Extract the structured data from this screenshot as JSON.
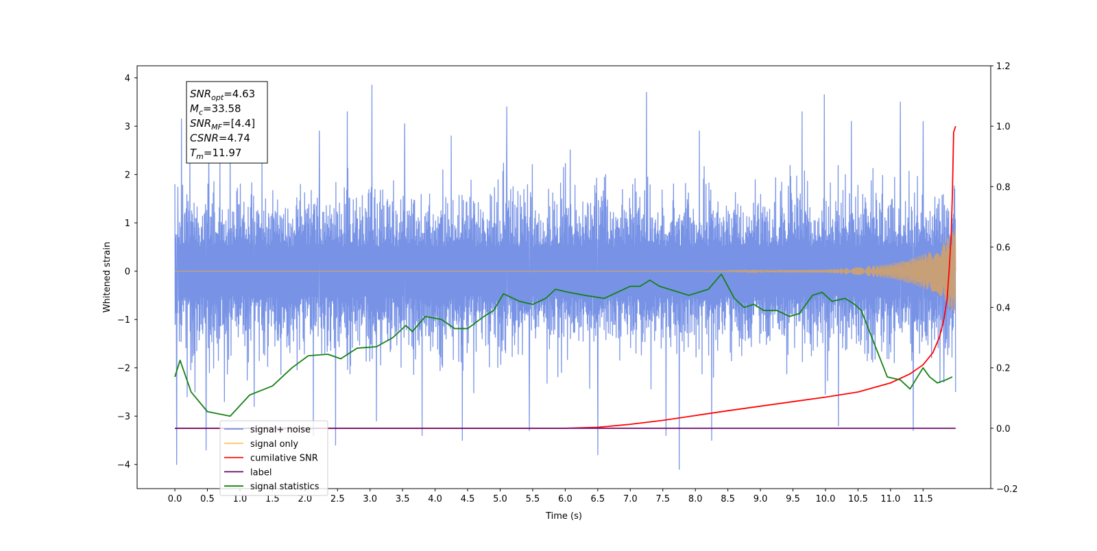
{
  "chart_data": {
    "type": "line",
    "xlabel": "Time (s)",
    "ylabel": "Whitened strain",
    "xlim": [
      -0.58,
      12.54
    ],
    "ylim": [
      -4.5,
      4.25
    ],
    "y2lim": [
      -0.2,
      1.2
    ],
    "x_ticks": [
      0.0,
      0.5,
      1.0,
      1.5,
      2.0,
      2.5,
      3.0,
      3.5,
      4.0,
      4.5,
      5.0,
      5.5,
      6.0,
      6.5,
      7.0,
      7.5,
      8.0,
      8.5,
      9.0,
      9.5,
      10.0,
      10.5,
      11.0,
      11.5
    ],
    "x_tick_labels": [
      "0.0",
      "0.5",
      "1.0",
      "1.5",
      "2.0",
      "2.5",
      "3.0",
      "3.5",
      "4.0",
      "4.5",
      "5.0",
      "5.5",
      "6.0",
      "6.5",
      "7.0",
      "7.5",
      "8.0",
      "8.5",
      "9.0",
      "9.5",
      "10.0",
      "10.5",
      "11.0",
      "11.5"
    ],
    "y_ticks": [
      -4,
      -3,
      -2,
      -1,
      0,
      1,
      2,
      3,
      4
    ],
    "y_tick_labels": [
      "−4",
      "−3",
      "−2",
      "−1",
      "0",
      "1",
      "2",
      "3",
      "4"
    ],
    "y2_ticks": [
      -0.2,
      0.0,
      0.2,
      0.4,
      0.6,
      0.8,
      1.0,
      1.2
    ],
    "y2_tick_labels": [
      "−0.2",
      "0.0",
      "0.2",
      "0.4",
      "0.6",
      "0.8",
      "1.0",
      "1.2"
    ],
    "grid": false,
    "legend_position": "lower-left",
    "noise_band": {
      "x_range": [
        0.0,
        12.0
      ],
      "typical_upper": 1.6,
      "typical_lower": -1.6,
      "max_peak": 3.85,
      "min_trough": -4.1
    },
    "series": [
      {
        "name": "signal+ noise",
        "axis": "left",
        "color": "#7893e6",
        "x": [
          0.0,
          0.03,
          0.05,
          0.1,
          0.19,
          0.23,
          0.31,
          0.48,
          0.52,
          0.76,
          0.85,
          1.22,
          1.34,
          2.13,
          2.22,
          2.47,
          2.65,
          3.03,
          3.1,
          3.53,
          3.8,
          4.12,
          4.25,
          4.42,
          5.1,
          5.45,
          6.5,
          7.25,
          7.55,
          7.75,
          8.06,
          8.25,
          9.64,
          9.98,
          10.2,
          10.4,
          11.15,
          11.35,
          11.5,
          11.82,
          11.98,
          12.0
        ],
        "y": [
          1.8,
          -4.0,
          0.5,
          3.15,
          -2.6,
          2.6,
          -2.5,
          -3.7,
          2.6,
          -2.7,
          2.8,
          -2.8,
          2.4,
          -3.4,
          2.9,
          -3.6,
          3.3,
          3.85,
          -3.1,
          3.05,
          -3.4,
          2.1,
          2.8,
          -3.5,
          3.4,
          -3.3,
          -3.8,
          3.7,
          -3.4,
          -4.1,
          2.9,
          -3.5,
          3.3,
          3.65,
          -3.2,
          3.1,
          3.5,
          -3.3,
          3.1,
          -2.3,
          1.3,
          -2.5
        ]
      },
      {
        "name": "signal only",
        "axis": "left",
        "color": "#c8a078",
        "x": [
          0.0,
          8.0,
          10.0,
          10.5,
          11.0,
          11.3,
          11.5,
          11.7,
          11.8,
          11.85,
          11.9,
          11.95,
          12.0
        ],
        "y": [
          0.0,
          0.0,
          0.03,
          0.08,
          0.15,
          0.25,
          0.35,
          0.45,
          0.55,
          0.65,
          0.75,
          0.85,
          0.9
        ]
      },
      {
        "name": "cumilative SNR",
        "axis": "right",
        "color": "#ff0000",
        "x": [
          0.0,
          6.0,
          6.5,
          7.0,
          7.5,
          8.0,
          8.5,
          9.0,
          9.5,
          10.0,
          10.5,
          11.0,
          11.3,
          11.5,
          11.65,
          11.75,
          11.82,
          11.87,
          11.9,
          11.93,
          11.95,
          11.97,
          12.0
        ],
        "y": [
          0.0,
          0.0,
          0.003,
          0.013,
          0.026,
          0.042,
          0.058,
          0.073,
          0.088,
          0.103,
          0.12,
          0.15,
          0.18,
          0.21,
          0.25,
          0.3,
          0.36,
          0.43,
          0.52,
          0.63,
          0.77,
          0.98,
          1.0
        ]
      },
      {
        "name": "label",
        "axis": "right",
        "color": "#6a0a6a",
        "x": [
          0.0,
          12.0
        ],
        "y": [
          0.0,
          0.0
        ]
      },
      {
        "name": "signal statistics",
        "axis": "right",
        "color": "#148014",
        "x": [
          0.0,
          0.08,
          0.25,
          0.5,
          0.85,
          1.15,
          1.5,
          1.8,
          2.05,
          2.35,
          2.55,
          2.8,
          3.1,
          3.35,
          3.55,
          3.65,
          3.85,
          4.1,
          4.3,
          4.5,
          4.75,
          4.9,
          5.05,
          5.3,
          5.5,
          5.7,
          5.85,
          6.05,
          6.3,
          6.6,
          6.8,
          7.0,
          7.15,
          7.3,
          7.45,
          7.6,
          7.75,
          7.9,
          8.05,
          8.2,
          8.4,
          8.6,
          8.75,
          8.9,
          9.05,
          9.25,
          9.45,
          9.6,
          9.8,
          9.95,
          10.1,
          10.3,
          10.45,
          10.55,
          10.75,
          10.95,
          11.15,
          11.3,
          11.5,
          11.6,
          11.72,
          11.85,
          11.95
        ],
        "y": [
          0.17,
          0.225,
          0.12,
          0.055,
          0.04,
          0.11,
          0.14,
          0.2,
          0.24,
          0.245,
          0.23,
          0.265,
          0.27,
          0.3,
          0.34,
          0.32,
          0.37,
          0.36,
          0.33,
          0.33,
          0.37,
          0.39,
          0.445,
          0.42,
          0.41,
          0.43,
          0.46,
          0.45,
          0.44,
          0.43,
          0.45,
          0.47,
          0.47,
          0.49,
          0.47,
          0.46,
          0.45,
          0.44,
          0.45,
          0.46,
          0.51,
          0.43,
          0.4,
          0.41,
          0.39,
          0.39,
          0.37,
          0.38,
          0.44,
          0.45,
          0.42,
          0.43,
          0.41,
          0.39,
          0.28,
          0.17,
          0.16,
          0.13,
          0.2,
          0.17,
          0.15,
          0.16,
          0.17
        ]
      }
    ],
    "legend_entries": [
      {
        "label": "signal+ noise",
        "color": "#7893e6"
      },
      {
        "label": "signal only",
        "color": "#ffc864"
      },
      {
        "label": "cumilative SNR",
        "color": "#ff0000"
      },
      {
        "label": "label",
        "color": "#6a0a6a"
      },
      {
        "label": "signal statistics",
        "color": "#148014"
      }
    ],
    "annotation_box": {
      "lines": [
        {
          "main": "SNR",
          "sub": "opt",
          "value": "=4.63"
        },
        {
          "main": "M",
          "sub": "c",
          "value": "=33.58"
        },
        {
          "main": "SNR",
          "sub": "MF",
          "value": "=[4.4]"
        },
        {
          "main": "CSNR",
          "sub": "",
          "value": "=4.74"
        },
        {
          "main": "T",
          "sub": "m",
          "value": "=11.97"
        }
      ]
    }
  }
}
